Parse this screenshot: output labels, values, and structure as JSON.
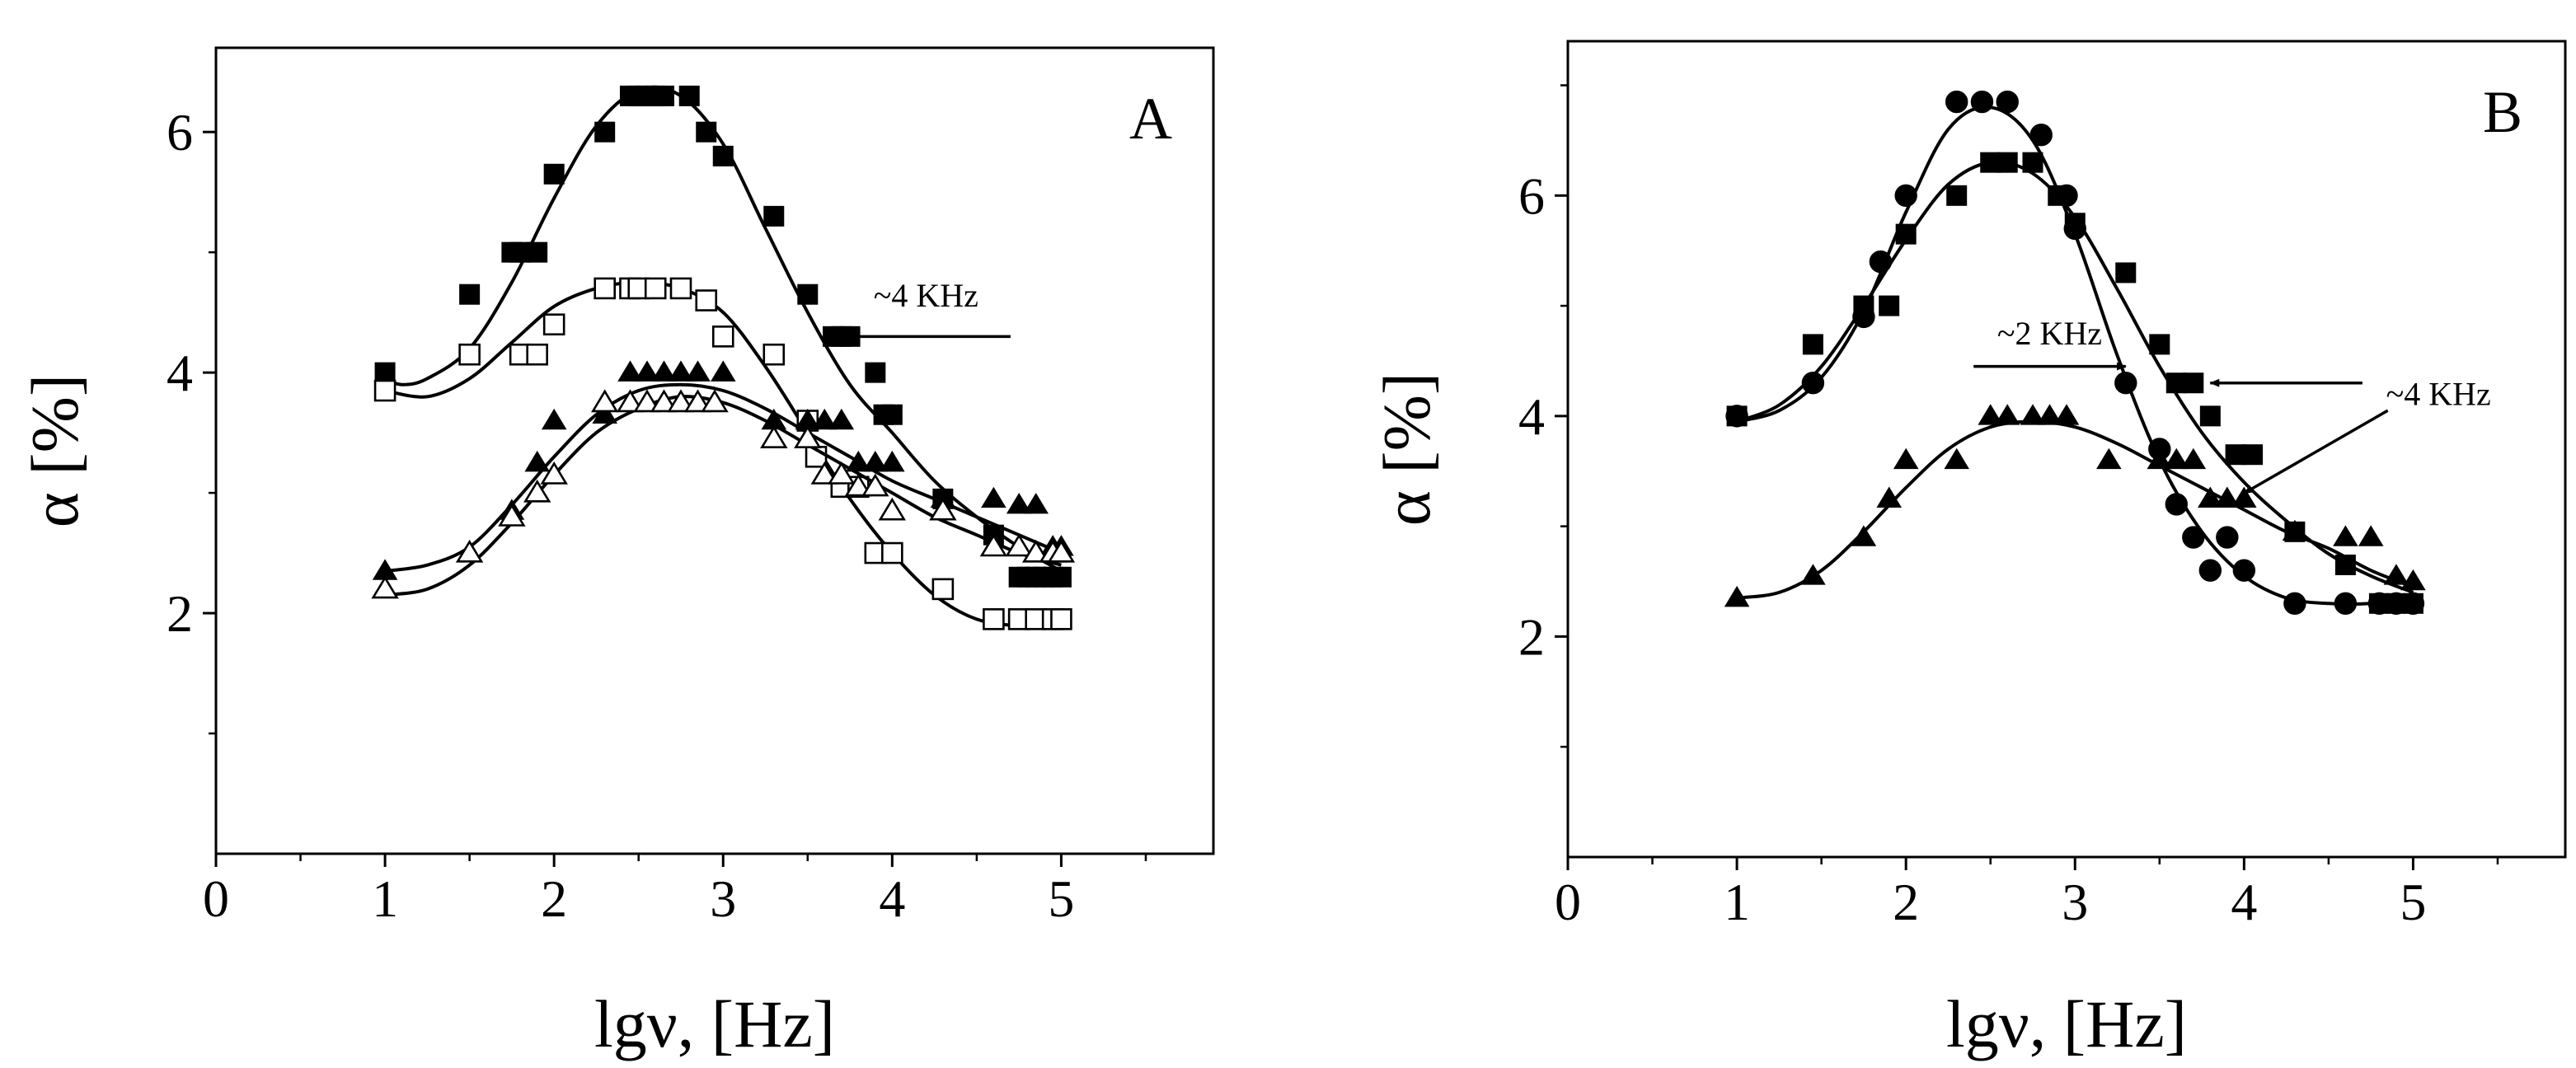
{
  "chart_data": [
    {
      "panel": "A",
      "type": "scatter",
      "title": "",
      "xlabel": "lgν, [Hz]",
      "ylabel": "α [%]",
      "xlim": [
        0,
        5.9
      ],
      "ylim": [
        0,
        6.7
      ],
      "xticks": [
        0,
        1,
        2,
        3,
        4,
        5
      ],
      "yticks": [
        2,
        4,
        6
      ],
      "grid": false,
      "panel_label": "A",
      "annotations": [
        {
          "text": "~4 KHz",
          "arrow_from": [
            4.7,
            4.3
          ],
          "arrow_to": [
            3.75,
            4.3
          ],
          "text_at": [
            4.2,
            4.55
          ]
        }
      ],
      "series": [
        {
          "name": "filled squares",
          "marker": "square-filled",
          "x": [
            1.0,
            1.5,
            1.75,
            1.8,
            1.9,
            2.0,
            2.3,
            2.45,
            2.5,
            2.55,
            2.6,
            2.65,
            2.8,
            2.9,
            3.0,
            3.3,
            3.5,
            3.65,
            3.7,
            3.75,
            3.9,
            3.95,
            4.0,
            4.3,
            4.6,
            4.75,
            4.8,
            4.85,
            4.9,
            4.95,
            5.0
          ],
          "y": [
            4.0,
            4.65,
            5.0,
            5.0,
            5.0,
            5.65,
            6.0,
            6.3,
            6.3,
            6.3,
            6.3,
            6.3,
            6.3,
            6.0,
            5.8,
            5.3,
            4.65,
            4.3,
            4.3,
            4.3,
            4.0,
            3.65,
            3.65,
            2.95,
            2.65,
            2.3,
            2.3,
            2.3,
            2.3,
            2.3,
            2.3
          ],
          "curve_x": [
            1.0,
            1.1,
            1.25,
            1.5,
            1.75,
            2.0,
            2.25,
            2.5,
            2.75,
            3.0,
            3.25,
            3.5,
            3.75,
            4.0,
            4.25,
            4.5,
            4.75,
            5.0
          ],
          "curve_y": [
            3.95,
            3.9,
            3.95,
            4.2,
            4.75,
            5.45,
            6.05,
            6.35,
            6.3,
            5.9,
            5.2,
            4.5,
            3.9,
            3.5,
            3.1,
            2.8,
            2.55,
            2.35
          ]
        },
        {
          "name": "open squares",
          "marker": "square-open",
          "x": [
            1.0,
            1.5,
            1.8,
            1.9,
            2.0,
            2.3,
            2.45,
            2.5,
            2.6,
            2.75,
            2.9,
            3.0,
            3.3,
            3.5,
            3.55,
            3.7,
            3.8,
            3.9,
            4.0,
            4.3,
            4.6,
            4.75,
            4.85,
            4.95,
            5.0
          ],
          "y": [
            3.85,
            4.15,
            4.15,
            4.15,
            4.4,
            4.7,
            4.7,
            4.7,
            4.7,
            4.7,
            4.6,
            4.3,
            4.15,
            3.6,
            3.3,
            3.05,
            3.05,
            2.5,
            2.5,
            2.2,
            1.95,
            1.95,
            1.95,
            1.95,
            1.95
          ],
          "curve_x": [
            1.0,
            1.25,
            1.5,
            1.75,
            2.0,
            2.25,
            2.5,
            2.75,
            3.0,
            3.25,
            3.5,
            3.75,
            4.0,
            4.25,
            4.5,
            4.75,
            5.0
          ],
          "curve_y": [
            3.85,
            3.8,
            3.95,
            4.25,
            4.55,
            4.7,
            4.75,
            4.7,
            4.5,
            4.05,
            3.5,
            2.95,
            2.5,
            2.15,
            1.95,
            1.9,
            1.95
          ]
        },
        {
          "name": "filled triangles",
          "marker": "triangle-filled",
          "x": [
            1.0,
            1.5,
            1.75,
            1.9,
            2.0,
            2.3,
            2.45,
            2.55,
            2.65,
            2.75,
            2.85,
            3.0,
            3.3,
            3.5,
            3.6,
            3.7,
            3.8,
            3.9,
            4.0,
            4.3,
            4.6,
            4.75,
            4.85,
            4.95,
            5.0
          ],
          "y": [
            2.35,
            2.5,
            2.85,
            3.25,
            3.6,
            3.65,
            4.0,
            4.0,
            4.0,
            4.0,
            4.0,
            4.0,
            3.6,
            3.6,
            3.6,
            3.6,
            3.25,
            3.25,
            3.25,
            2.95,
            2.95,
            2.9,
            2.9,
            2.55,
            2.55
          ],
          "curve_x": [
            1.0,
            1.25,
            1.5,
            1.75,
            2.0,
            2.25,
            2.5,
            2.75,
            3.0,
            3.25,
            3.5,
            3.75,
            4.0,
            4.25,
            4.5,
            4.75,
            5.0
          ],
          "curve_y": [
            2.35,
            2.4,
            2.55,
            2.9,
            3.3,
            3.65,
            3.85,
            3.9,
            3.85,
            3.7,
            3.5,
            3.3,
            3.1,
            2.95,
            2.8,
            2.65,
            2.5
          ]
        },
        {
          "name": "open triangles",
          "marker": "triangle-open",
          "x": [
            1.0,
            1.5,
            1.75,
            1.9,
            2.0,
            2.3,
            2.45,
            2.55,
            2.65,
            2.75,
            2.85,
            2.95,
            3.3,
            3.5,
            3.6,
            3.7,
            3.8,
            3.9,
            4.0,
            4.3,
            4.6,
            4.75,
            4.85,
            4.95,
            5.0
          ],
          "y": [
            2.2,
            2.5,
            2.8,
            3.0,
            3.15,
            3.75,
            3.75,
            3.75,
            3.75,
            3.75,
            3.75,
            3.75,
            3.45,
            3.45,
            3.15,
            3.15,
            3.05,
            3.05,
            2.85,
            2.85,
            2.55,
            2.55,
            2.5,
            2.5,
            2.5
          ],
          "curve_x": [
            1.0,
            1.25,
            1.5,
            1.75,
            2.0,
            2.25,
            2.5,
            2.75,
            3.0,
            3.25,
            3.5,
            3.75,
            4.0,
            4.25,
            4.5,
            4.75,
            5.0
          ],
          "curve_y": [
            2.15,
            2.2,
            2.4,
            2.75,
            3.15,
            3.5,
            3.7,
            3.8,
            3.75,
            3.6,
            3.4,
            3.2,
            3.0,
            2.8,
            2.65,
            2.5,
            2.4
          ]
        }
      ]
    },
    {
      "panel": "B",
      "type": "scatter",
      "title": "",
      "xlabel": "lgν, [Hz]",
      "ylabel": "α [%]",
      "xlim": [
        0,
        5.9
      ],
      "ylim": [
        0,
        7.4
      ],
      "xticks": [
        0,
        1,
        2,
        3,
        4,
        5
      ],
      "yticks": [
        2,
        4,
        6
      ],
      "grid": false,
      "panel_label": "B",
      "annotations": [
        {
          "text": "~2 KHz",
          "arrow_from": [
            2.4,
            4.45
          ],
          "arrow_to": [
            3.3,
            4.45
          ],
          "text_at": [
            2.85,
            4.65
          ]
        },
        {
          "text": "~4 KHz",
          "arrow_from": [
            4.7,
            4.3
          ],
          "arrow_to": [
            3.8,
            4.3
          ],
          "text_at": [
            5.15,
            4.1
          ]
        },
        {
          "text": "",
          "arrow_from": [
            4.85,
            4.05
          ],
          "arrow_to": [
            4.0,
            3.3
          ],
          "text_at": [
            0,
            0
          ]
        }
      ],
      "series": [
        {
          "name": "filled circles",
          "marker": "circle-filled",
          "x": [
            1.0,
            1.45,
            1.75,
            1.85,
            2.0,
            2.3,
            2.45,
            2.6,
            2.8,
            2.95,
            3.0,
            3.3,
            3.5,
            3.6,
            3.7,
            3.8,
            3.9,
            4.0,
            4.3,
            4.6,
            4.8,
            4.9,
            5.0
          ],
          "y": [
            4.0,
            4.3,
            4.9,
            5.4,
            6.0,
            6.85,
            6.85,
            6.85,
            6.55,
            6.0,
            5.7,
            4.3,
            3.7,
            3.2,
            2.9,
            2.6,
            2.9,
            2.6,
            2.3,
            2.3,
            2.3,
            2.3,
            2.3
          ],
          "curve_x": [
            1.0,
            1.25,
            1.5,
            1.75,
            2.0,
            2.25,
            2.5,
            2.75,
            3.0,
            3.25,
            3.5,
            3.75,
            4.0,
            4.25,
            4.5,
            4.75,
            5.0
          ],
          "curve_y": [
            3.95,
            4.05,
            4.35,
            4.95,
            5.85,
            6.6,
            6.8,
            6.5,
            5.65,
            4.55,
            3.6,
            2.95,
            2.55,
            2.35,
            2.3,
            2.3,
            2.35
          ]
        },
        {
          "name": "filled squares",
          "marker": "square-filled",
          "x": [
            1.0,
            1.45,
            1.75,
            1.9,
            2.0,
            2.3,
            2.5,
            2.6,
            2.75,
            2.9,
            3.0,
            3.3,
            3.5,
            3.6,
            3.7,
            3.8,
            3.95,
            4.05,
            4.3,
            4.6,
            4.8,
            4.9,
            5.0
          ],
          "y": [
            4.0,
            4.65,
            5.0,
            5.0,
            5.65,
            6.0,
            6.3,
            6.3,
            6.3,
            6.0,
            5.75,
            5.3,
            4.65,
            4.3,
            4.3,
            4.0,
            3.65,
            3.65,
            2.95,
            2.65,
            2.3,
            2.3,
            2.3
          ],
          "curve_x": [
            1.0,
            1.25,
            1.5,
            1.75,
            2.0,
            2.25,
            2.5,
            2.75,
            3.0,
            3.25,
            3.5,
            3.75,
            4.0,
            4.25,
            4.5,
            4.75,
            5.0
          ],
          "curve_y": [
            3.95,
            4.1,
            4.45,
            5.0,
            5.6,
            6.1,
            6.3,
            6.2,
            5.8,
            5.15,
            4.45,
            3.85,
            3.4,
            3.05,
            2.75,
            2.55,
            2.4
          ]
        },
        {
          "name": "filled triangles",
          "marker": "triangle-filled",
          "x": [
            1.0,
            1.45,
            1.75,
            1.9,
            2.0,
            2.3,
            2.5,
            2.6,
            2.75,
            2.85,
            2.95,
            3.2,
            3.5,
            3.6,
            3.7,
            3.8,
            3.9,
            4.0,
            4.3,
            4.6,
            4.75,
            4.9,
            5.0
          ],
          "y": [
            2.35,
            2.55,
            2.9,
            3.25,
            3.6,
            3.6,
            4.0,
            4.0,
            4.0,
            4.0,
            4.0,
            3.6,
            3.6,
            3.6,
            3.6,
            3.25,
            3.25,
            3.25,
            2.95,
            2.9,
            2.9,
            2.55,
            2.5
          ],
          "curve_x": [
            1.0,
            1.25,
            1.5,
            1.75,
            2.0,
            2.25,
            2.5,
            2.75,
            3.0,
            3.25,
            3.5,
            3.75,
            4.0,
            4.25,
            4.5,
            4.75,
            5.0
          ],
          "curve_y": [
            2.35,
            2.4,
            2.6,
            2.95,
            3.35,
            3.7,
            3.9,
            3.95,
            3.9,
            3.75,
            3.55,
            3.35,
            3.15,
            2.95,
            2.8,
            2.6,
            2.45
          ]
        }
      ]
    }
  ]
}
